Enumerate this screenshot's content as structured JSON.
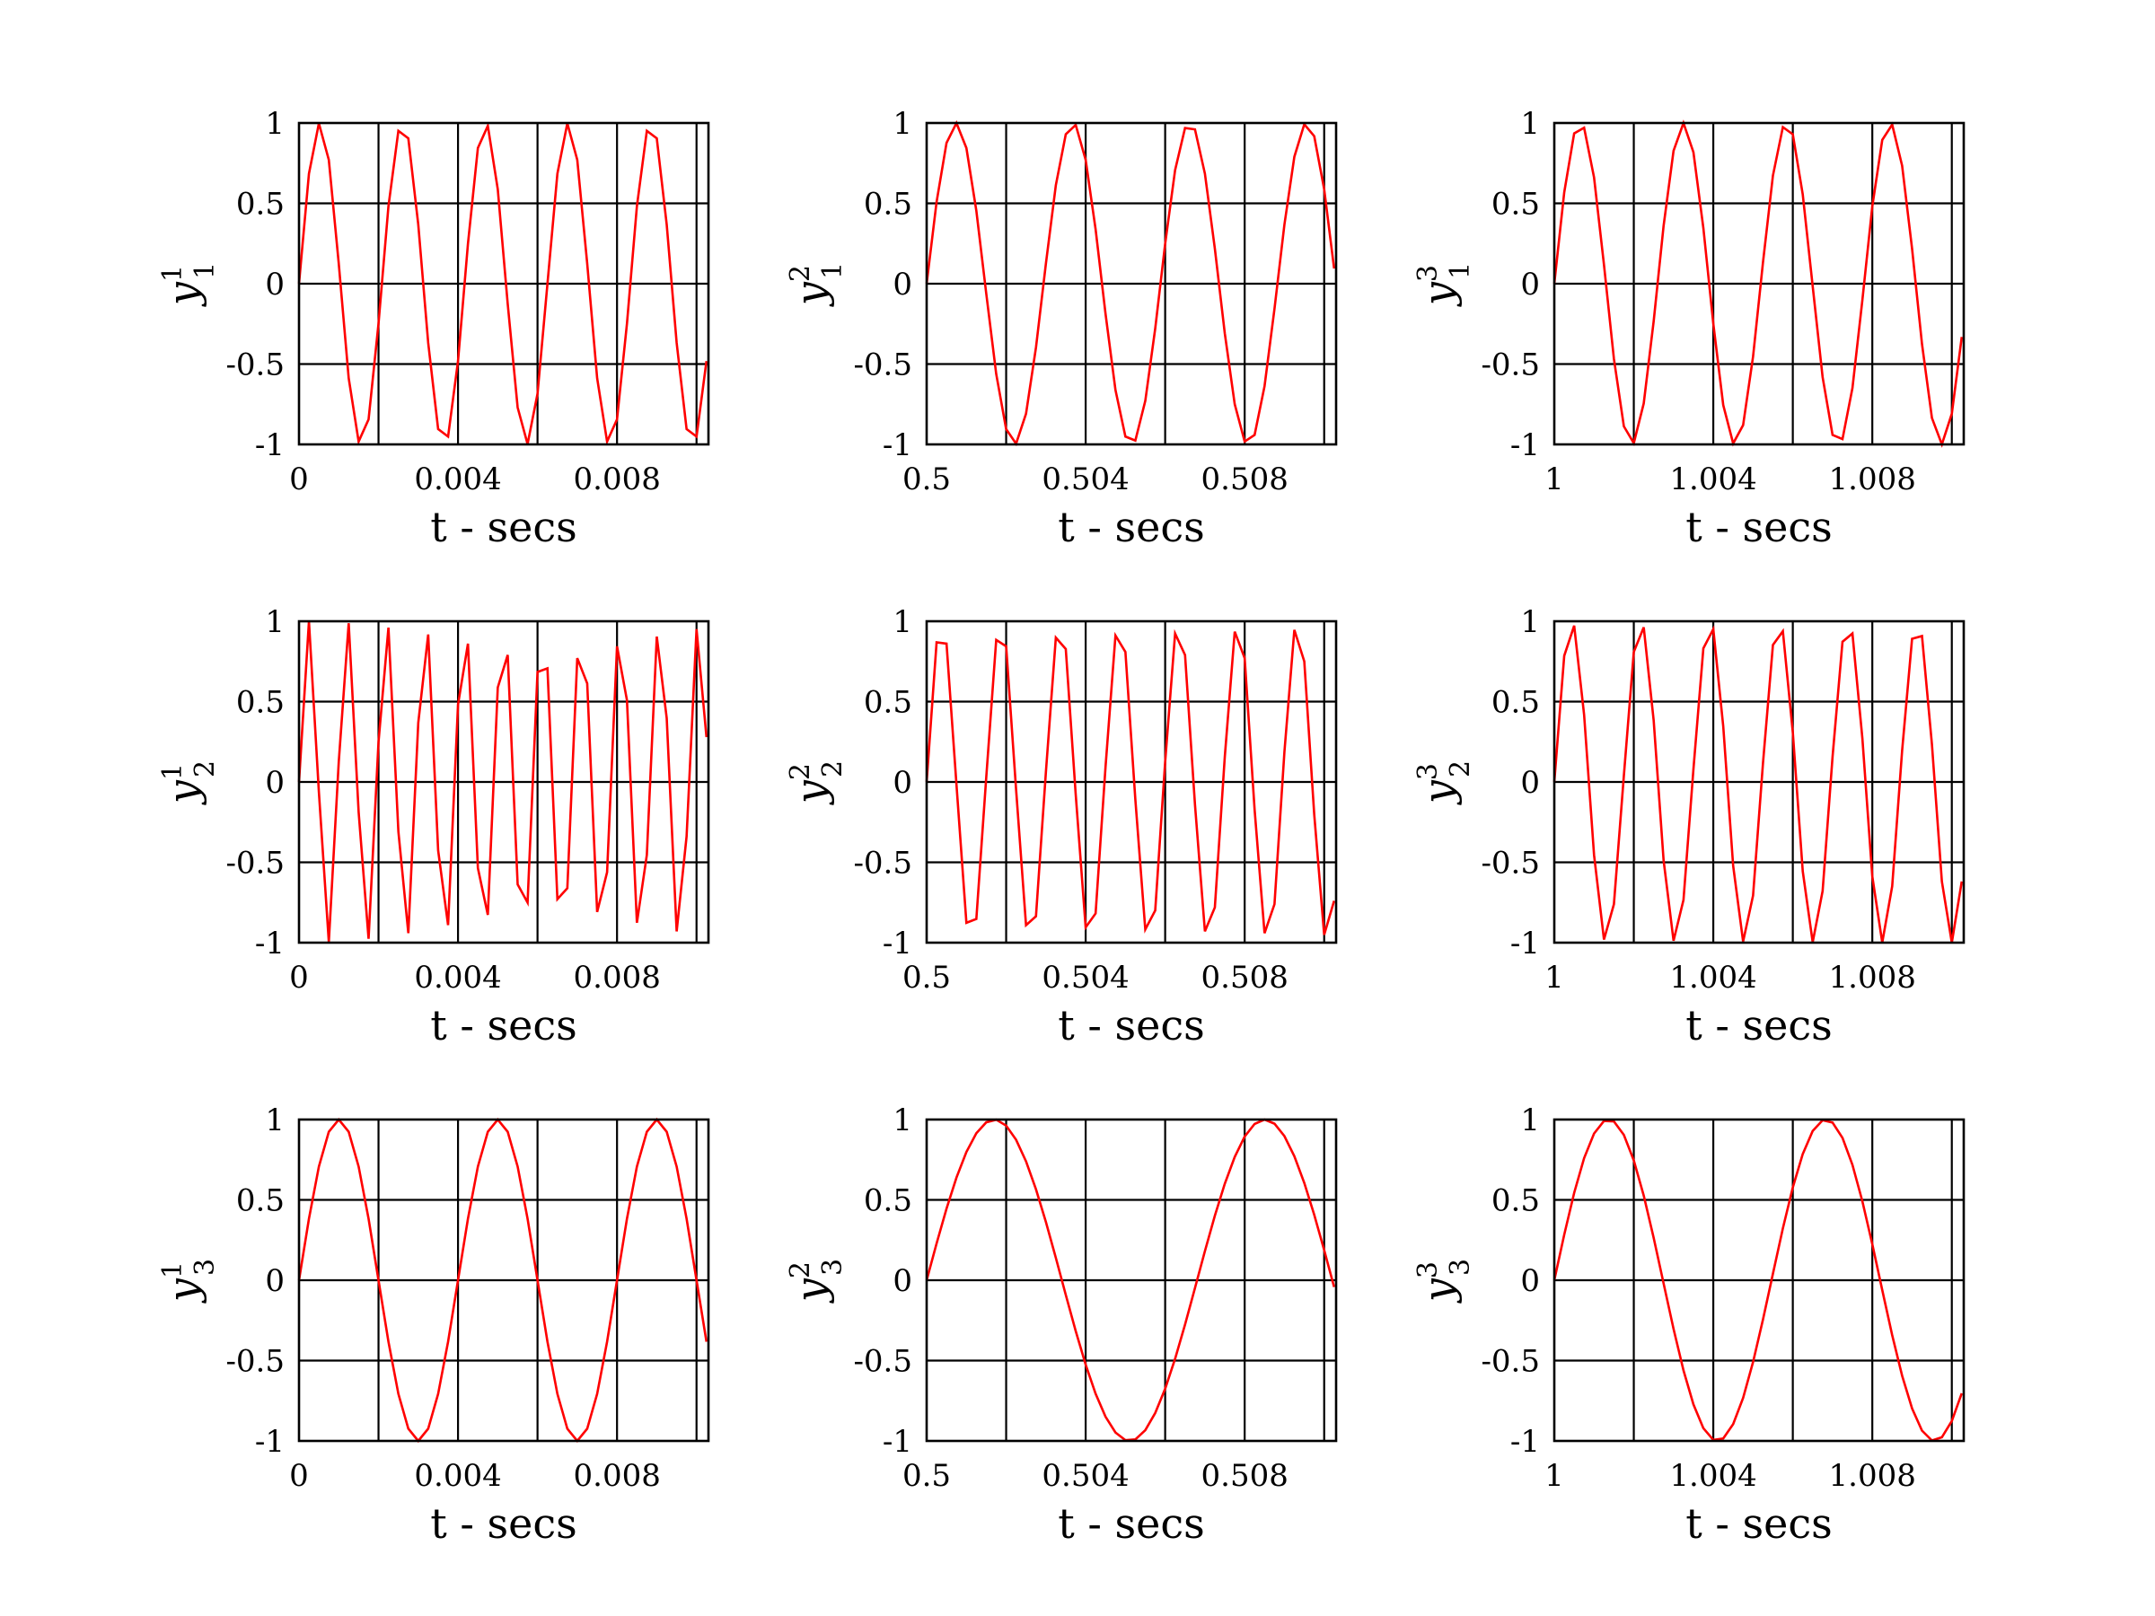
{
  "colors": {
    "line": "#ff0000",
    "axes": "#000000",
    "grid": "#000000",
    "background": "#ffffff"
  },
  "chart_data": [
    {
      "id": "y1-1",
      "type": "line",
      "ylabel": {
        "base": "y",
        "sub": "1",
        "sup": "1"
      },
      "xlabel": "t - secs",
      "xlim": [
        0,
        0.0103
      ],
      "ylim": [
        -1,
        1
      ],
      "grid": true,
      "xticks": [
        0,
        0.004,
        0.008
      ],
      "xtick_labels": [
        "0",
        "0.004",
        "0.008"
      ],
      "yticks": [
        1,
        0.5,
        0,
        -0.5,
        -1
      ],
      "ytick_labels": [
        "1",
        "0.5",
        "0",
        "-0.5",
        "-1"
      ],
      "grid_x": [
        0,
        0.002,
        0.004,
        0.006,
        0.008,
        0.01
      ],
      "grid_y": [
        -1,
        -0.5,
        0,
        0.5,
        1
      ],
      "series": [
        {
          "freq_hz": 480,
          "dt": 0.00025
        }
      ]
    },
    {
      "id": "y1-2",
      "type": "line",
      "ylabel": {
        "base": "y",
        "sub": "1",
        "sup": "2"
      },
      "xlabel": "t - secs",
      "xlim": [
        0.5,
        0.5103
      ],
      "ylim": [
        -1,
        1
      ],
      "grid": true,
      "xticks": [
        0.5,
        0.504,
        0.508
      ],
      "xtick_labels": [
        "0.5",
        "0.504",
        "0.508"
      ],
      "yticks": [
        1,
        0.5,
        0,
        -0.5,
        -1
      ],
      "ytick_labels": [
        "1",
        "0.5",
        "0",
        "-0.5",
        "-1"
      ],
      "grid_x": [
        0.5,
        0.502,
        0.504,
        0.506,
        0.508,
        0.51
      ],
      "grid_y": [
        -1,
        -0.5,
        0,
        0.5,
        1
      ],
      "series": [
        {
          "freq_hz": 340,
          "dt": 0.00025
        }
      ]
    },
    {
      "id": "y1-3",
      "type": "line",
      "ylabel": {
        "base": "y",
        "sub": "1",
        "sup": "3"
      },
      "xlabel": "t - secs",
      "xlim": [
        1,
        1.0103
      ],
      "ylim": [
        -1,
        1
      ],
      "grid": true,
      "xticks": [
        1,
        1.004,
        1.008
      ],
      "xtick_labels": [
        "1",
        "1.004",
        "1.008"
      ],
      "yticks": [
        1,
        0.5,
        0,
        -0.5,
        -1
      ],
      "ytick_labels": [
        "1",
        "0.5",
        "0",
        "-0.5",
        "-1"
      ],
      "grid_x": [
        1,
        1.002,
        1.004,
        1.006,
        1.008,
        1.01
      ],
      "grid_y": [
        -1,
        -0.5,
        0,
        0.5,
        1
      ],
      "series": [
        {
          "freq_hz": 385,
          "dt": 0.00025
        }
      ]
    },
    {
      "id": "y2-1",
      "type": "line",
      "ylabel": {
        "base": "y",
        "sub": "2",
        "sup": "1"
      },
      "xlabel": "t - secs",
      "xlim": [
        0,
        0.0103
      ],
      "ylim": [
        -1,
        1
      ],
      "grid": true,
      "xticks": [
        0,
        0.004,
        0.008
      ],
      "xtick_labels": [
        "0",
        "0.004",
        "0.008"
      ],
      "yticks": [
        1,
        0.5,
        0,
        -0.5,
        -1
      ],
      "ytick_labels": [
        "1",
        "0.5",
        "0",
        "-0.5",
        "-1"
      ],
      "grid_x": [
        0,
        0.002,
        0.004,
        0.006,
        0.008,
        0.01
      ],
      "grid_y": [
        -1,
        -0.5,
        0,
        0.5,
        1
      ],
      "series": [
        {
          "freq_hz": 1020,
          "dt": 0.00025
        }
      ]
    },
    {
      "id": "y2-2",
      "type": "line",
      "ylabel": {
        "base": "y",
        "sub": "2",
        "sup": "2"
      },
      "xlabel": "t - secs",
      "xlim": [
        0.5,
        0.5103
      ],
      "ylim": [
        -1,
        1
      ],
      "grid": true,
      "xticks": [
        0.5,
        0.504,
        0.508
      ],
      "xtick_labels": [
        "0.5",
        "0.504",
        "0.508"
      ],
      "yticks": [
        1,
        0.5,
        0,
        -0.5,
        -1
      ],
      "ytick_labels": [
        "1",
        "0.5",
        "0",
        "-0.5",
        "-1"
      ],
      "grid_x": [
        0.5,
        0.502,
        0.504,
        0.506,
        0.508,
        0.51
      ],
      "grid_y": [
        -1,
        -0.5,
        0,
        0.5,
        1
      ],
      "series": [
        {
          "freq_hz": 670,
          "dt": 0.00025
        }
      ]
    },
    {
      "id": "y2-3",
      "type": "line",
      "ylabel": {
        "base": "y",
        "sub": "2",
        "sup": "3"
      },
      "xlabel": "t - secs",
      "xlim": [
        1,
        1.0103
      ],
      "ylim": [
        -1,
        1
      ],
      "grid": true,
      "xticks": [
        1,
        1.004,
        1.008
      ],
      "xtick_labels": [
        "1",
        "1.004",
        "1.008"
      ],
      "yticks": [
        1,
        0.5,
        0,
        -0.5,
        -1
      ],
      "ytick_labels": [
        "1",
        "0.5",
        "0",
        "-0.5",
        "-1"
      ],
      "grid_x": [
        1,
        1.002,
        1.004,
        1.006,
        1.008,
        1.01
      ],
      "grid_y": [
        -1,
        -0.5,
        0,
        0.5,
        1
      ],
      "series": [
        {
          "freq_hz": 575,
          "dt": 0.00025
        }
      ]
    },
    {
      "id": "y3-1",
      "type": "line",
      "ylabel": {
        "base": "y",
        "sub": "3",
        "sup": "1"
      },
      "xlabel": "t - secs",
      "xlim": [
        0,
        0.0103
      ],
      "ylim": [
        -1,
        1
      ],
      "grid": true,
      "xticks": [
        0,
        0.004,
        0.008
      ],
      "xtick_labels": [
        "0",
        "0.004",
        "0.008"
      ],
      "yticks": [
        1,
        0.5,
        0,
        -0.5,
        -1
      ],
      "ytick_labels": [
        "1",
        "0.5",
        "0",
        "-0.5",
        "-1"
      ],
      "grid_x": [
        0,
        0.002,
        0.004,
        0.006,
        0.008,
        0.01
      ],
      "grid_y": [
        -1,
        -0.5,
        0,
        0.5,
        1
      ],
      "series": [
        {
          "freq_hz": 250,
          "dt": 0.00025
        }
      ]
    },
    {
      "id": "y3-2",
      "type": "line",
      "ylabel": {
        "base": "y",
        "sub": "3",
        "sup": "2"
      },
      "xlabel": "t - secs",
      "xlim": [
        0.5,
        0.5103
      ],
      "ylim": [
        -1,
        1
      ],
      "grid": true,
      "xticks": [
        0.5,
        0.504,
        0.508
      ],
      "xtick_labels": [
        "0.5",
        "0.504",
        "0.508"
      ],
      "yticks": [
        1,
        0.5,
        0,
        -0.5,
        -1
      ],
      "ytick_labels": [
        "1",
        "0.5",
        "0",
        "-0.5",
        "-1"
      ],
      "grid_x": [
        0.5,
        0.502,
        0.504,
        0.506,
        0.508,
        0.51
      ],
      "grid_y": [
        -1,
        -0.5,
        0,
        0.5,
        1
      ],
      "series": [
        {
          "freq_hz": 147,
          "dt": 0.00025
        }
      ]
    },
    {
      "id": "y3-3",
      "type": "line",
      "ylabel": {
        "base": "y",
        "sub": "3",
        "sup": "3"
      },
      "xlabel": "t - secs",
      "xlim": [
        1,
        1.0103
      ],
      "ylim": [
        -1,
        1
      ],
      "grid": true,
      "xticks": [
        1,
        1.004,
        1.008
      ],
      "xtick_labels": [
        "1",
        "1.004",
        "1.008"
      ],
      "yticks": [
        1,
        0.5,
        0,
        -0.5,
        -1
      ],
      "ytick_labels": [
        "1",
        "0.5",
        "0",
        "-0.5",
        "-1"
      ],
      "grid_x": [
        1,
        1.002,
        1.004,
        1.006,
        1.008,
        1.01
      ],
      "grid_y": [
        -1,
        -0.5,
        0,
        0.5,
        1
      ],
      "series": [
        {
          "freq_hz": 183,
          "dt": 0.00025
        }
      ]
    }
  ]
}
